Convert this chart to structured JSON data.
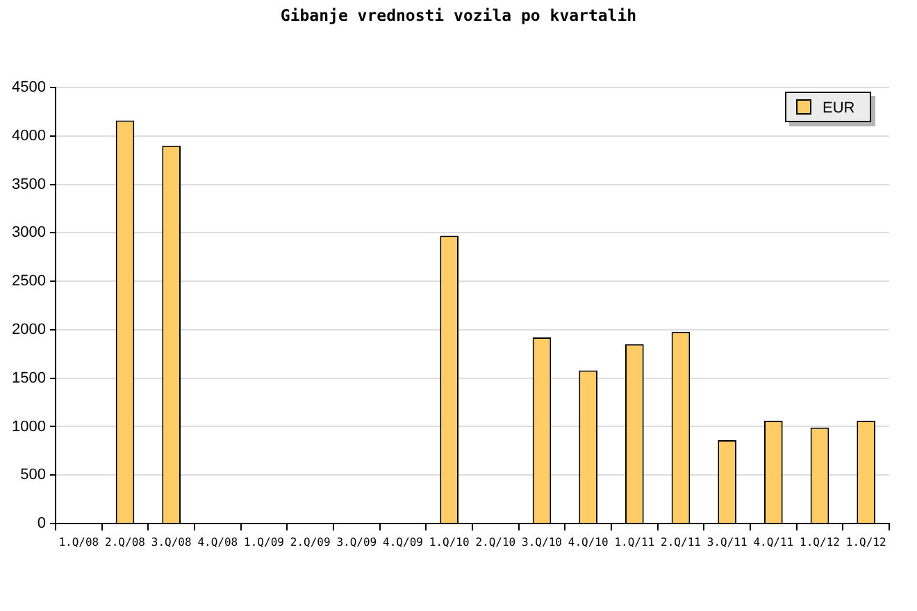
{
  "chart_data": {
    "type": "bar",
    "title": "Gibanje vrednosti vozila po kvartalih",
    "categories": [
      "1.Q/08",
      "2.Q/08",
      "3.Q/08",
      "4.Q/08",
      "1.Q/09",
      "2.Q/09",
      "3.Q/09",
      "4.Q/09",
      "1.Q/10",
      "2.Q/10",
      "3.Q/10",
      "4.Q/10",
      "1.Q/11",
      "2.Q/11",
      "3.Q/11",
      "4.Q/11",
      "1.Q/12",
      "1.Q/12"
    ],
    "series": [
      {
        "name": "EUR",
        "color": "#ffcc66",
        "values": [
          null,
          4160,
          3900,
          null,
          null,
          null,
          null,
          null,
          2970,
          null,
          1920,
          1580,
          1850,
          1980,
          860,
          1060,
          990,
          1060
        ]
      }
    ],
    "ylim": [
      0,
      4500
    ],
    "yticks": [
      0,
      500,
      1000,
      1500,
      2000,
      2500,
      3000,
      3500,
      4000,
      4500
    ],
    "grid": "y",
    "legend": "top right"
  }
}
